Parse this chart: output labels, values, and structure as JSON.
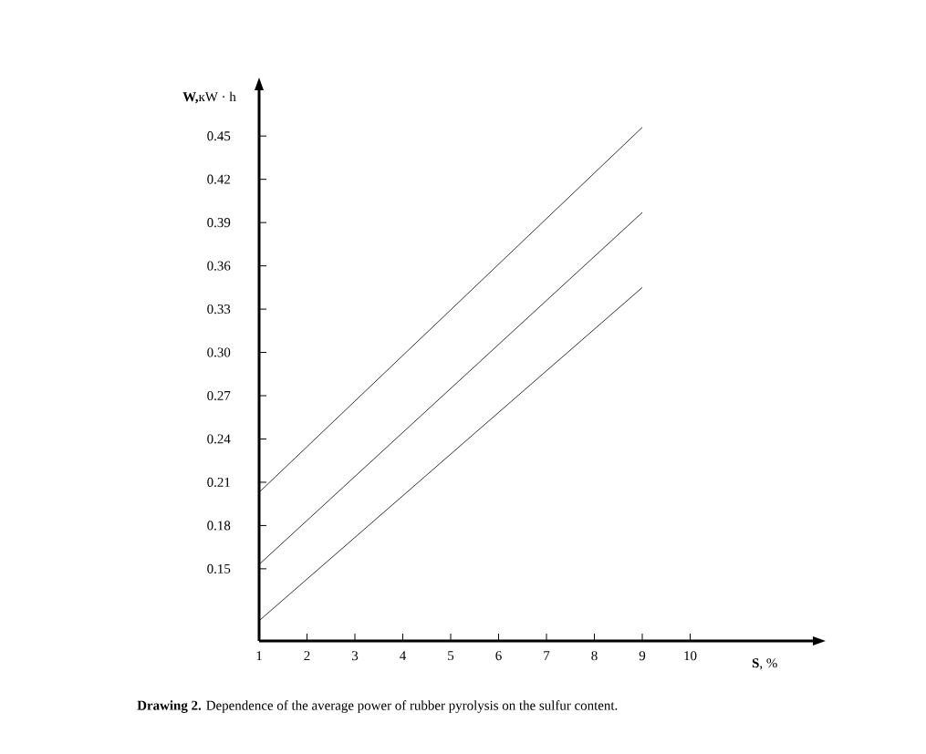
{
  "chart_data": {
    "type": "line",
    "xlabel": "**S**, %",
    "ylabel": "**W,**кW · h",
    "annotations": [
      "**Drawing 2.** Dependence of the average power of rubber pyrolysis on the sulfur content."
    ],
    "x": [
      1,
      9
    ],
    "series": [
      {
        "color": "#000000",
        "values": [
          0.203,
          0.456
        ]
      },
      {
        "color": "#000000",
        "values": [
          0.153,
          0.397
        ]
      },
      {
        "color": "#000000",
        "values": [
          0.114,
          0.345
        ]
      }
    ],
    "xlim": [
      1,
      12.6
    ],
    "ylim": [
      0.1,
      0.483
    ],
    "xticks": [
      1,
      2,
      3,
      4,
      5,
      6,
      7,
      8,
      9,
      10
    ],
    "yticks": [
      {
        "value": 0.15,
        "label": "0.15"
      },
      {
        "value": 0.18,
        "label": "0.18"
      },
      {
        "value": 0.21,
        "label": "0.21"
      },
      {
        "value": 0.24,
        "label": "0.24"
      },
      {
        "value": 0.27,
        "label": "0.27"
      },
      {
        "value": 0.3,
        "label": "0.30"
      },
      {
        "value": 0.33,
        "label": "0.33"
      },
      {
        "value": 0.36,
        "label": "0.36"
      },
      {
        "value": 0.39,
        "label": "0.39"
      },
      {
        "value": 0.42,
        "label": "0.42"
      },
      {
        "value": 0.45,
        "label": "0.45"
      }
    ],
    "marker": "none",
    "line_style": "solid"
  }
}
